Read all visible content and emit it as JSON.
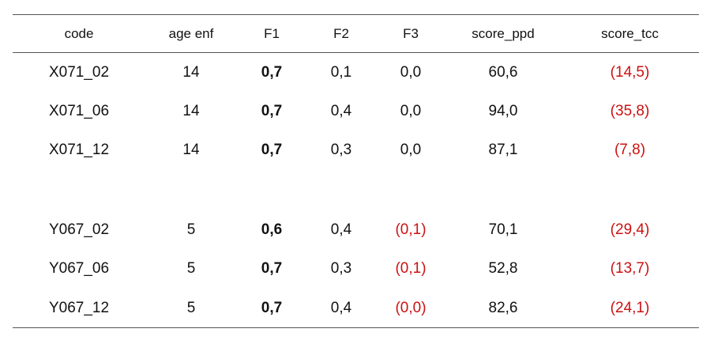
{
  "table": {
    "headers": [
      "code",
      "age enf",
      "F1",
      "F2",
      "F3",
      "score_ppd",
      "score_tcc"
    ],
    "groups": [
      {
        "rows": [
          {
            "code": "X071_02",
            "age": "14",
            "f1": "0,7",
            "f2": "0,1",
            "f3": "0,0",
            "ppd": "60,6",
            "tcc": "(14,5)"
          },
          {
            "code": "X071_06",
            "age": "14",
            "f1": "0,7",
            "f2": "0,4",
            "f3": "0,0",
            "ppd": "94,0",
            "tcc": "(35,8)"
          },
          {
            "code": "X071_12",
            "age": "14",
            "f1": "0,7",
            "f2": "0,3",
            "f3": "0,0",
            "ppd": "87,1",
            "tcc": "(7,8)"
          }
        ]
      },
      {
        "rows": [
          {
            "code": "Y067_02",
            "age": "5",
            "f1": "0,6",
            "f2": "0,4",
            "f3": "(0,1)",
            "ppd": "70,1",
            "tcc": "(29,4)"
          },
          {
            "code": "Y067_06",
            "age": "5",
            "f1": "0,7",
            "f2": "0,3",
            "f3": "(0,1)",
            "ppd": "52,8",
            "tcc": "(13,7)"
          },
          {
            "code": "Y067_12",
            "age": "5",
            "f1": "0,7",
            "f2": "0,4",
            "f3": "(0,0)",
            "ppd": "82,6",
            "tcc": "(24,1)"
          }
        ]
      }
    ]
  },
  "colors": {
    "negative_value": "#cc1111",
    "text": "#111111",
    "rule": "#555555"
  }
}
